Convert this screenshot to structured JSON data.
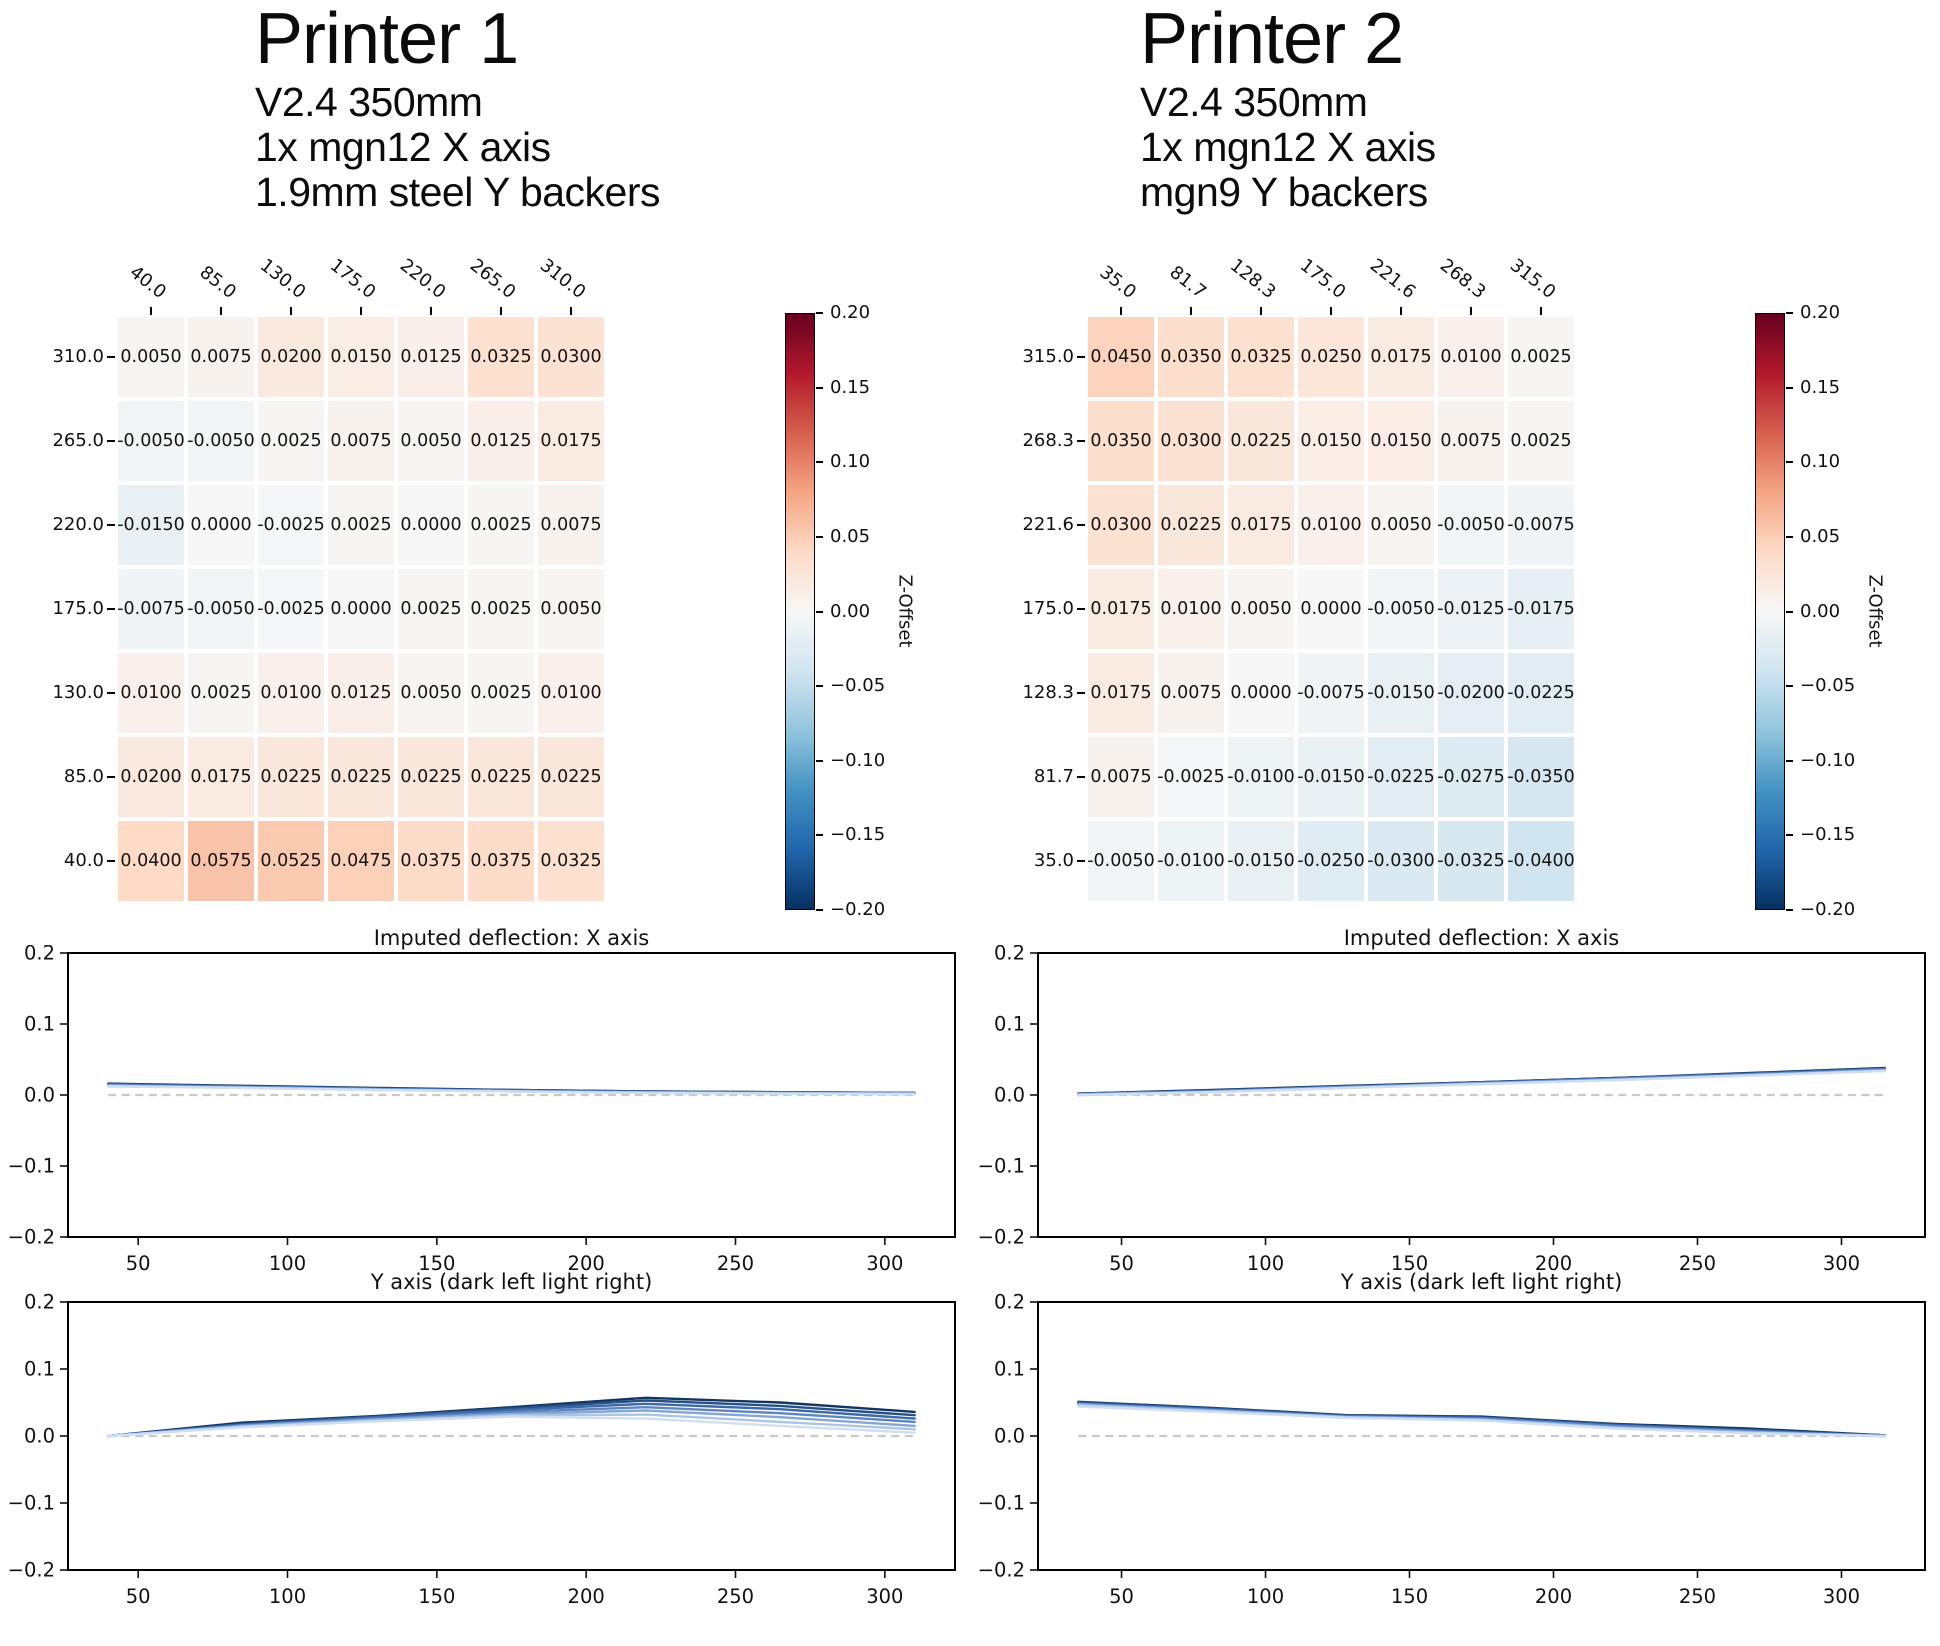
{
  "figure_bg": "#ffffff",
  "colormap": {
    "name": "RdBu_r",
    "vmin": -0.2,
    "vmax": 0.2,
    "stops": [
      "#053061",
      "#2166ac",
      "#4393c3",
      "#92c5de",
      "#d1e5f0",
      "#f7f7f7",
      "#fddbc7",
      "#f4a582",
      "#d6604d",
      "#b2182b",
      "#67001f"
    ]
  },
  "zero_line_color": "#c9c9c9",
  "chart_data": [
    {
      "id": "printer1-heatmap",
      "type": "heatmap",
      "title": "Printer 1",
      "subtitle": [
        "V2.4 350mm",
        "1x mgn12 X axis",
        "1.9mm steel Y backers"
      ],
      "x_tick_labels": [
        "40.0",
        "85.0",
        "130.0",
        "175.0",
        "220.0",
        "265.0",
        "310.0"
      ],
      "y_tick_labels": [
        "310.0",
        "265.0",
        "220.0",
        "175.0",
        "130.0",
        "85.0",
        "40.0"
      ],
      "values": [
        [
          "0.0050",
          "0.0075",
          "0.0200",
          "0.0150",
          "0.0125",
          "0.0325",
          "0.0300"
        ],
        [
          "-0.0050",
          "-0.0050",
          "0.0025",
          "0.0075",
          "0.0050",
          "0.0125",
          "0.0175"
        ],
        [
          "-0.0150",
          "0.0000",
          "-0.0025",
          "0.0025",
          "0.0000",
          "0.0025",
          "0.0075"
        ],
        [
          "-0.0075",
          "-0.0050",
          "-0.0025",
          "0.0000",
          "0.0025",
          "0.0025",
          "0.0050"
        ],
        [
          "0.0100",
          "0.0025",
          "0.0100",
          "0.0125",
          "0.0050",
          "0.0025",
          "0.0100"
        ],
        [
          "0.0200",
          "0.0175",
          "0.0225",
          "0.0225",
          "0.0225",
          "0.0225",
          "0.0225"
        ],
        [
          "0.0400",
          "0.0575",
          "0.0525",
          "0.0475",
          "0.0375",
          "0.0375",
          "0.0325"
        ]
      ],
      "colorbar": {
        "label": "Z-Offset",
        "ticks": [
          "0.20",
          "0.15",
          "0.10",
          "0.05",
          "0.00",
          "−0.05",
          "−0.10",
          "−0.15",
          "−0.20"
        ]
      }
    },
    {
      "id": "printer1-x-deflection",
      "type": "line",
      "title": "Imputed deflection: X axis",
      "x": [
        40,
        85,
        130,
        175,
        220,
        265,
        310
      ],
      "xlim": [
        26.5,
        323.5
      ],
      "ylim": [
        -0.2,
        0.2
      ],
      "x_ticks": [
        50,
        100,
        150,
        200,
        250,
        300
      ],
      "y_ticks": [
        {
          "v": 0.2,
          "label": "0.2"
        },
        {
          "v": 0.1,
          "label": "0.1"
        },
        {
          "v": 0.0,
          "label": "0.0"
        },
        {
          "v": -0.1,
          "label": "−0.1"
        },
        {
          "v": -0.2,
          "label": "−0.2"
        }
      ],
      "zero_line": true,
      "series": [
        {
          "color": "#11375f",
          "values": [
            0.016,
            0.013,
            0.01,
            0.007,
            0.005,
            0.004,
            0.003
          ]
        },
        {
          "color": "#27508b",
          "values": [
            0.015,
            0.012,
            0.009,
            0.007,
            0.005,
            0.004,
            0.003
          ]
        },
        {
          "color": "#3d69a7",
          "values": [
            0.015,
            0.012,
            0.009,
            0.006,
            0.004,
            0.003,
            0.003
          ]
        },
        {
          "color": "#5d86c1",
          "values": [
            0.014,
            0.011,
            0.008,
            0.006,
            0.004,
            0.003,
            0.002
          ]
        },
        {
          "color": "#84a6d4",
          "values": [
            0.013,
            0.011,
            0.008,
            0.005,
            0.004,
            0.003,
            0.002
          ]
        },
        {
          "color": "#abc5e5",
          "values": [
            0.013,
            0.01,
            0.007,
            0.005,
            0.003,
            0.002,
            0.002
          ]
        },
        {
          "color": "#cfdef2",
          "values": [
            0.012,
            0.01,
            0.007,
            0.005,
            0.003,
            0.002,
            0.001
          ]
        }
      ]
    },
    {
      "id": "printer1-y-deflection",
      "type": "line",
      "title": "Y axis (dark left light right)",
      "x": [
        40,
        85,
        130,
        175,
        220,
        265,
        310
      ],
      "xlim": [
        26.5,
        323.5
      ],
      "ylim": [
        -0.2,
        0.2
      ],
      "x_ticks": [
        50,
        100,
        150,
        200,
        250,
        300
      ],
      "y_ticks": [
        {
          "v": 0.2,
          "label": "0.2"
        },
        {
          "v": 0.1,
          "label": "0.1"
        },
        {
          "v": 0.0,
          "label": "0.0"
        },
        {
          "v": -0.1,
          "label": "−0.1"
        },
        {
          "v": -0.2,
          "label": "−0.2"
        }
      ],
      "zero_line": true,
      "series": [
        {
          "color": "#11375f",
          "values": [
            0.0,
            0.02,
            0.03,
            0.043,
            0.057,
            0.05,
            0.036
          ]
        },
        {
          "color": "#27508b",
          "values": [
            0.0,
            0.018,
            0.029,
            0.041,
            0.053,
            0.045,
            0.031
          ]
        },
        {
          "color": "#3d69a7",
          "values": [
            0.0,
            0.017,
            0.028,
            0.039,
            0.048,
            0.04,
            0.026
          ]
        },
        {
          "color": "#5d86c1",
          "values": [
            0.0,
            0.016,
            0.026,
            0.036,
            0.043,
            0.034,
            0.021
          ]
        },
        {
          "color": "#84a6d4",
          "values": [
            0.0,
            0.015,
            0.025,
            0.033,
            0.038,
            0.028,
            0.015
          ]
        },
        {
          "color": "#abc5e5",
          "values": [
            0.0,
            0.014,
            0.023,
            0.031,
            0.032,
            0.021,
            0.01
          ]
        },
        {
          "color": "#cfdef2",
          "values": [
            0.0,
            0.013,
            0.022,
            0.029,
            0.026,
            0.015,
            0.005
          ]
        }
      ]
    },
    {
      "id": "printer2-heatmap",
      "type": "heatmap",
      "title": "Printer 2",
      "subtitle": [
        "V2.4 350mm",
        "1x mgn12 X axis",
        "mgn9 Y backers"
      ],
      "x_tick_labels": [
        "35.0",
        "81.7",
        "128.3",
        "175.0",
        "221.6",
        "268.3",
        "315.0"
      ],
      "y_tick_labels": [
        "315.0",
        "268.3",
        "221.6",
        "175.0",
        "128.3",
        "81.7",
        "35.0"
      ],
      "values": [
        [
          "0.0450",
          "0.0350",
          "0.0325",
          "0.0250",
          "0.0175",
          "0.0100",
          "0.0025"
        ],
        [
          "0.0350",
          "0.0300",
          "0.0225",
          "0.0150",
          "0.0150",
          "0.0075",
          "0.0025"
        ],
        [
          "0.0300",
          "0.0225",
          "0.0175",
          "0.0100",
          "0.0050",
          "-0.0050",
          "-0.0075"
        ],
        [
          "0.0175",
          "0.0100",
          "0.0050",
          "0.0000",
          "-0.0050",
          "-0.0125",
          "-0.0175"
        ],
        [
          "0.0175",
          "0.0075",
          "0.0000",
          "-0.0075",
          "-0.0150",
          "-0.0200",
          "-0.0225"
        ],
        [
          "0.0075",
          "-0.0025",
          "-0.0100",
          "-0.0150",
          "-0.0225",
          "-0.0275",
          "-0.0350"
        ],
        [
          "-0.0050",
          "-0.0100",
          "-0.0150",
          "-0.0250",
          "-0.0300",
          "-0.0325",
          "-0.0400"
        ]
      ],
      "colorbar": {
        "label": "Z-Offset",
        "ticks": [
          "0.20",
          "0.15",
          "0.10",
          "0.05",
          "0.00",
          "−0.05",
          "−0.10",
          "−0.15",
          "−0.20"
        ]
      }
    },
    {
      "id": "printer2-x-deflection",
      "type": "line",
      "title": "Imputed deflection: X axis",
      "x": [
        35,
        81.7,
        128.3,
        175,
        221.6,
        268.3,
        315
      ],
      "xlim": [
        21,
        329
      ],
      "ylim": [
        -0.2,
        0.2
      ],
      "x_ticks": [
        50,
        100,
        150,
        200,
        250,
        300
      ],
      "y_ticks": [
        {
          "v": 0.2,
          "label": "0.2"
        },
        {
          "v": 0.1,
          "label": "0.1"
        },
        {
          "v": 0.0,
          "label": "0.0"
        },
        {
          "v": -0.1,
          "label": "−0.1"
        },
        {
          "v": -0.2,
          "label": "−0.2"
        }
      ],
      "zero_line": true,
      "series": [
        {
          "color": "#11375f",
          "values": [
            0.002,
            0.007,
            0.013,
            0.018,
            0.024,
            0.031,
            0.038
          ]
        },
        {
          "color": "#27508b",
          "values": [
            0.002,
            0.006,
            0.012,
            0.018,
            0.024,
            0.03,
            0.037
          ]
        },
        {
          "color": "#3d69a7",
          "values": [
            0.001,
            0.006,
            0.012,
            0.017,
            0.023,
            0.03,
            0.037
          ]
        },
        {
          "color": "#5d86c1",
          "values": [
            0.001,
            0.005,
            0.011,
            0.017,
            0.023,
            0.029,
            0.036
          ]
        },
        {
          "color": "#84a6d4",
          "values": [
            0.001,
            0.005,
            0.011,
            0.016,
            0.022,
            0.028,
            0.035
          ]
        },
        {
          "color": "#abc5e5",
          "values": [
            0.0,
            0.004,
            0.01,
            0.016,
            0.021,
            0.028,
            0.034
          ]
        },
        {
          "color": "#cfdef2",
          "values": [
            0.0,
            0.004,
            0.01,
            0.015,
            0.021,
            0.027,
            0.034
          ]
        }
      ]
    },
    {
      "id": "printer2-y-deflection",
      "type": "line",
      "title": "Y axis (dark left light right)",
      "x": [
        35,
        81.7,
        128.3,
        175,
        221.6,
        268.3,
        315
      ],
      "xlim": [
        21,
        329
      ],
      "ylim": [
        -0.2,
        0.2
      ],
      "x_ticks": [
        50,
        100,
        150,
        200,
        250,
        300
      ],
      "y_ticks": [
        {
          "v": 0.2,
          "label": "0.2"
        },
        {
          "v": 0.1,
          "label": "0.1"
        },
        {
          "v": 0.0,
          "label": "0.0"
        },
        {
          "v": -0.1,
          "label": "−0.1"
        },
        {
          "v": -0.2,
          "label": "−0.2"
        }
      ],
      "zero_line": true,
      "series": [
        {
          "color": "#11375f",
          "values": [
            0.051,
            0.042,
            0.031,
            0.029,
            0.018,
            0.011,
            0.001
          ]
        },
        {
          "color": "#27508b",
          "values": [
            0.05,
            0.041,
            0.03,
            0.028,
            0.017,
            0.009,
            0.001
          ]
        },
        {
          "color": "#3d69a7",
          "values": [
            0.049,
            0.04,
            0.03,
            0.027,
            0.016,
            0.008,
            0.0
          ]
        },
        {
          "color": "#5d86c1",
          "values": [
            0.048,
            0.039,
            0.029,
            0.026,
            0.015,
            0.007,
            0.0
          ]
        },
        {
          "color": "#84a6d4",
          "values": [
            0.047,
            0.038,
            0.028,
            0.025,
            0.013,
            0.006,
            0.0
          ]
        },
        {
          "color": "#abc5e5",
          "values": [
            0.046,
            0.037,
            0.028,
            0.024,
            0.012,
            0.005,
            0.0
          ]
        },
        {
          "color": "#cfdef2",
          "values": [
            0.044,
            0.036,
            0.027,
            0.023,
            0.011,
            0.004,
            0.0
          ]
        }
      ]
    }
  ]
}
